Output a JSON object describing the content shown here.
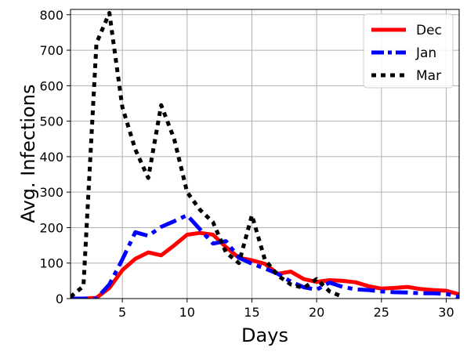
{
  "chart_data": {
    "type": "line",
    "title": "",
    "xlabel": "Days",
    "ylabel": "Avg. Infections",
    "xlim": [
      1,
      31
    ],
    "ylim": [
      0,
      815
    ],
    "xticks": [
      5,
      10,
      15,
      20,
      25,
      30
    ],
    "yticks": [
      0,
      100,
      200,
      300,
      400,
      500,
      600,
      700,
      800
    ],
    "grid": true,
    "legend_position": "top-right",
    "series": [
      {
        "name": "Dec",
        "color": "#ff0000",
        "style": "solid",
        "x": [
          1,
          2,
          3,
          4,
          5,
          6,
          7,
          8,
          9,
          10,
          11,
          12,
          13,
          14,
          15,
          16,
          17,
          18,
          19,
          20,
          21,
          22,
          23,
          24,
          25,
          26,
          27,
          28,
          29,
          30,
          31
        ],
        "y": [
          0,
          0,
          2,
          30,
          80,
          112,
          130,
          122,
          150,
          180,
          185,
          180,
          145,
          115,
          108,
          98,
          70,
          76,
          55,
          47,
          52,
          50,
          46,
          35,
          28,
          30,
          33,
          27,
          24,
          22,
          12
        ]
      },
      {
        "name": "Jan",
        "color": "#0000ff",
        "style": "dashdot",
        "x": [
          1,
          2,
          3,
          4,
          5,
          6,
          7,
          8,
          9,
          10,
          11,
          12,
          13,
          14,
          15,
          16,
          17,
          18,
          19,
          20,
          21,
          22,
          23,
          24,
          25,
          26,
          27,
          28,
          29,
          30,
          31
        ],
        "y": [
          0,
          0,
          0,
          40,
          110,
          187,
          177,
          202,
          218,
          235,
          195,
          155,
          162,
          115,
          98,
          85,
          70,
          48,
          32,
          25,
          45,
          33,
          26,
          24,
          20,
          18,
          17,
          15,
          15,
          13,
          5
        ]
      },
      {
        "name": "Mar",
        "color": "#000000",
        "style": "dotted",
        "x": [
          1,
          2,
          3,
          4,
          5,
          6,
          7,
          8,
          9,
          10,
          11,
          12,
          13,
          14,
          15,
          16,
          17,
          18,
          19,
          20,
          21,
          22
        ],
        "y": [
          5,
          35,
          720,
          805,
          540,
          420,
          340,
          545,
          450,
          300,
          250,
          215,
          130,
          100,
          235,
          110,
          65,
          40,
          30,
          55,
          20,
          5
        ]
      }
    ]
  }
}
